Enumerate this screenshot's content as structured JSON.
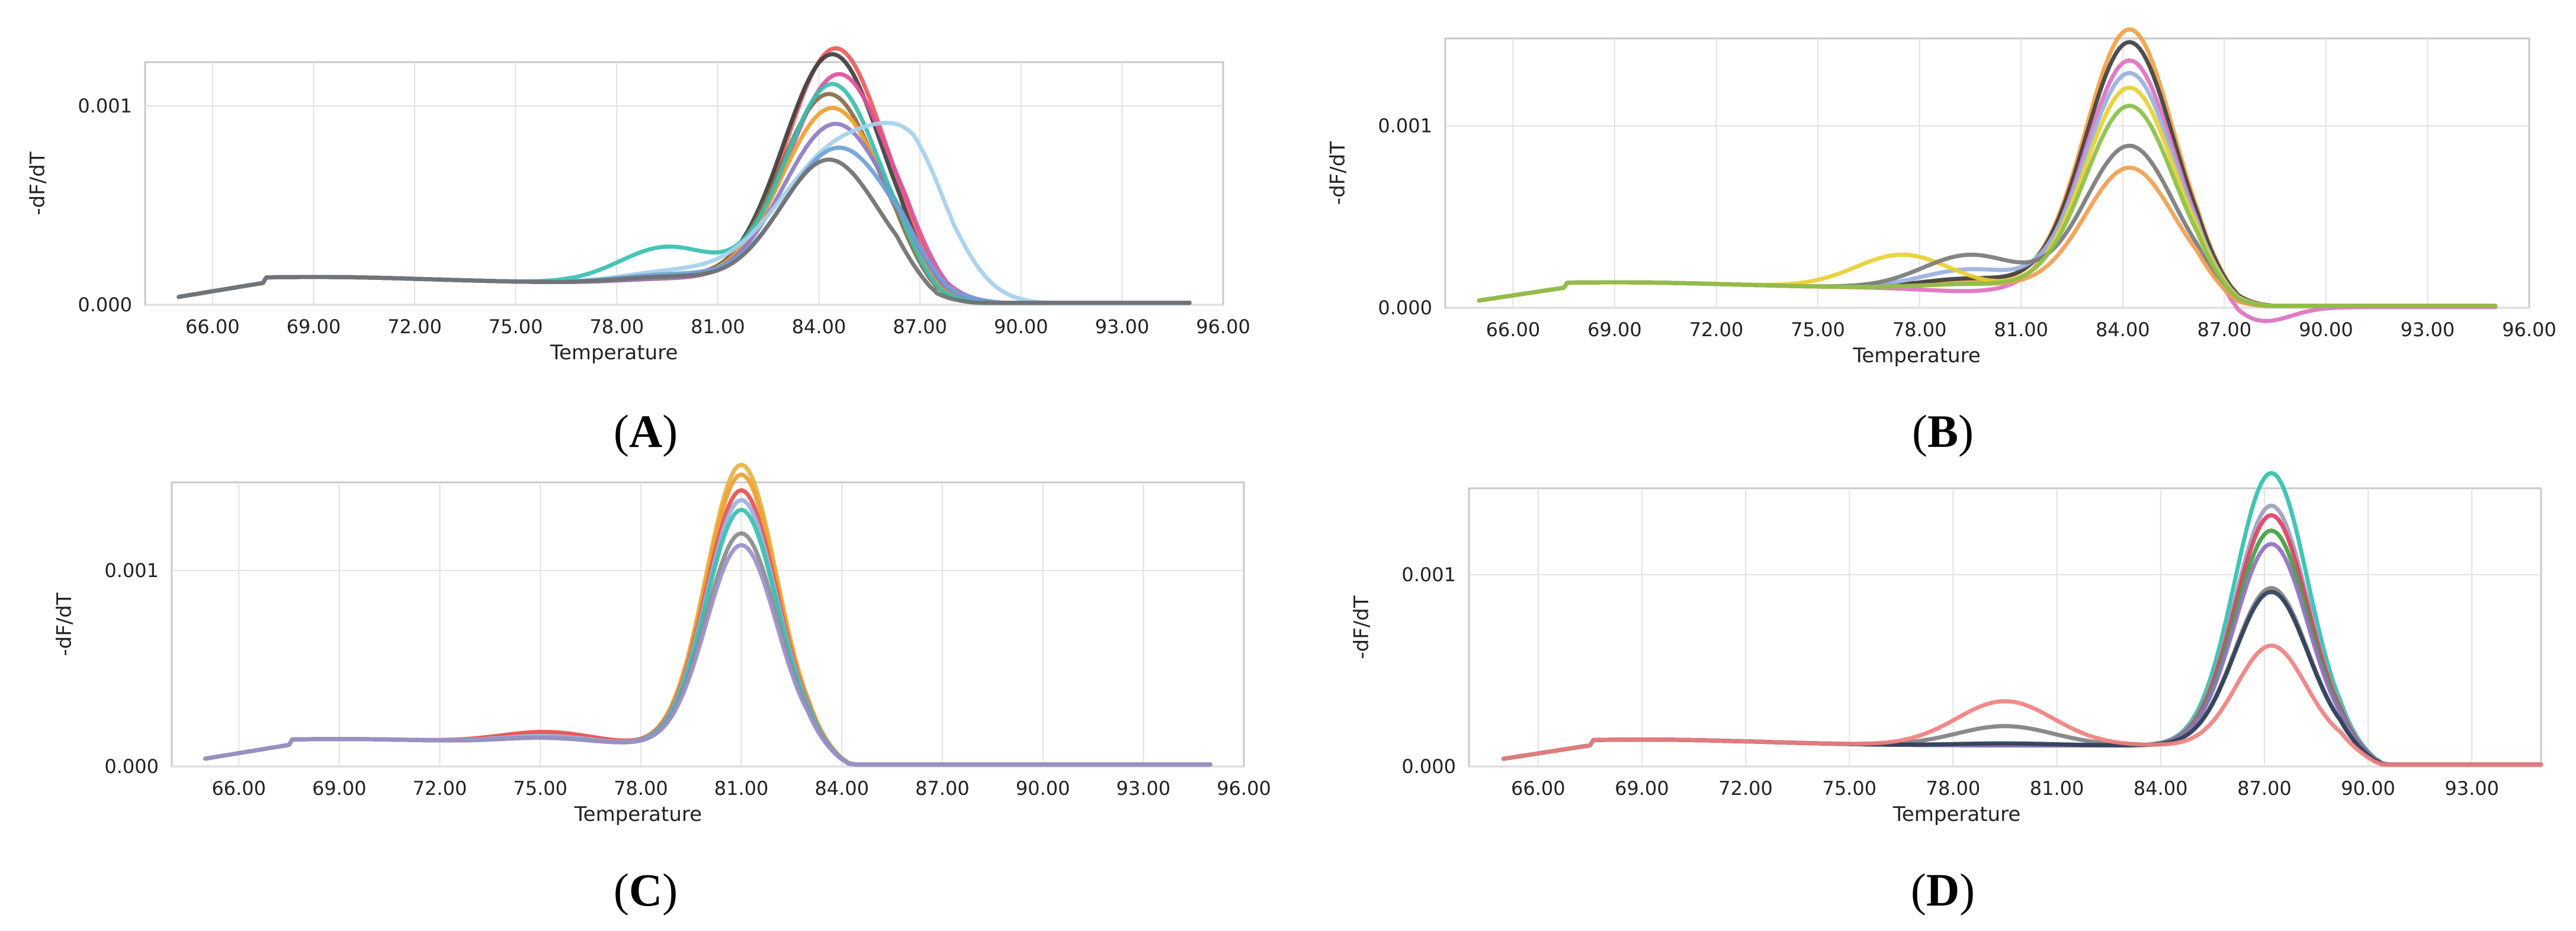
{
  "chart_data": [
    {
      "type": "line",
      "panel_label": "A",
      "xlabel": "Temperature",
      "ylabel": "-dF/dT",
      "xlim": [
        64,
        96
      ],
      "ylim": [
        0,
        0.00122
      ],
      "x_ticks": [
        "66.00",
        "69.00",
        "72.00",
        "75.00",
        "78.00",
        "81.00",
        "84.00",
        "87.00",
        "90.00",
        "93.00",
        "96.00"
      ],
      "y_ticks": [
        "0.000",
        "0.001"
      ],
      "grid": true,
      "series": [
        {
          "color": "#ef5a5a",
          "peak_temp": 84.5,
          "peak_value": 0.00118,
          "width": 1.45,
          "hump_temp": 79.5,
          "hump_value": 0.00012
        },
        {
          "color": "#3f3f3f",
          "peak_temp": 84.4,
          "peak_value": 0.00115,
          "width": 1.45,
          "hump_temp": 79.5,
          "hump_value": 0.00012
        },
        {
          "color": "#e0509a",
          "peak_temp": 84.6,
          "peak_value": 0.00105,
          "width": 1.5,
          "hump_temp": 79.5,
          "hump_value": 0.00012
        },
        {
          "color": "#8a6a4a",
          "peak_temp": 84.3,
          "peak_value": 0.00095,
          "width": 1.45,
          "hump_temp": 79.5,
          "hump_value": 0.00013
        },
        {
          "color": "#f0a030",
          "peak_temp": 84.4,
          "peak_value": 0.00088,
          "width": 1.5,
          "hump_temp": 79.5,
          "hump_value": 0.00012
        },
        {
          "color": "#8e7cc3",
          "peak_temp": 84.5,
          "peak_value": 0.0008,
          "width": 1.55,
          "hump_temp": 79.5,
          "hump_value": 0.00012
        },
        {
          "color": "#36c0b0",
          "peak_temp": 84.4,
          "peak_value": 0.001,
          "width": 1.4,
          "hump_temp": 79.5,
          "hump_value": 0.00028
        },
        {
          "color": "#a6d0ec",
          "peak_temp": 84.8,
          "peak_value": 0.0007,
          "width": 1.9,
          "hump_temp": 79.5,
          "hump_value": 0.00015,
          "shoulder_temp": 87.0,
          "shoulder_value": 0.00035
        },
        {
          "color": "#6fa0d8",
          "peak_temp": 84.6,
          "peak_value": 0.00068,
          "width": 1.6,
          "hump_temp": 79.5,
          "hump_value": 0.00014
        },
        {
          "color": "#707070",
          "peak_temp": 84.3,
          "peak_value": 0.00062,
          "width": 1.45,
          "hump_temp": 79.5,
          "hump_value": 0.00013
        }
      ]
    },
    {
      "type": "line",
      "panel_label": "B",
      "xlabel": "Temperature",
      "ylabel": "-dF/dT",
      "xlim": [
        64,
        96
      ],
      "ylim": [
        0,
        0.00148
      ],
      "x_ticks": [
        "66.00",
        "69.00",
        "72.00",
        "75.00",
        "78.00",
        "81.00",
        "84.00",
        "87.00",
        "90.00",
        "93.00",
        "96.00"
      ],
      "y_ticks": [
        "0.000",
        "0.001"
      ],
      "grid": true,
      "series": [
        {
          "color": "#f5a040",
          "peak_temp": 84.2,
          "peak_value": 0.00142,
          "width": 1.3,
          "hump_temp": 79.5,
          "hump_value": 0.00014
        },
        {
          "color": "#3f3f3f",
          "peak_temp": 84.2,
          "peak_value": 0.00135,
          "width": 1.3,
          "hump_temp": 79.5,
          "hump_value": 0.00015
        },
        {
          "color": "#e070c0",
          "peak_temp": 84.2,
          "peak_value": 0.00125,
          "width": 1.3,
          "hump_temp": 79.5,
          "hump_value": 8e-05,
          "dip_temp": 88.0,
          "dip_value": -9e-05
        },
        {
          "color": "#9ab0e0",
          "peak_temp": 84.2,
          "peak_value": 0.00118,
          "width": 1.3,
          "hump_temp": 79.5,
          "hump_value": 0.0002
        },
        {
          "color": "#e8d030",
          "peak_temp": 84.2,
          "peak_value": 0.0011,
          "width": 1.3,
          "hump_temp": 77.5,
          "hump_value": 0.00028
        },
        {
          "color": "#7a7a7a",
          "peak_temp": 84.2,
          "peak_value": 0.00078,
          "width": 1.3,
          "hump_temp": 79.5,
          "hump_value": 0.00028
        },
        {
          "color": "#f0a050",
          "peak_temp": 84.2,
          "peak_value": 0.00066,
          "width": 1.3,
          "hump_temp": 79.5,
          "hump_value": 0.00012
        },
        {
          "color": "#8ac048",
          "peak_temp": 84.2,
          "peak_value": 0.001,
          "width": 1.3,
          "hump_temp": 79.5,
          "hump_value": 0.00012
        }
      ]
    },
    {
      "type": "line",
      "panel_label": "C",
      "xlabel": "Temperature",
      "ylabel": "-dF/dT",
      "xlim": [
        64,
        96
      ],
      "ylim": [
        0,
        0.00145
      ],
      "x_ticks": [
        "66.00",
        "69.00",
        "72.00",
        "75.00",
        "78.00",
        "81.00",
        "84.00",
        "87.00",
        "90.00",
        "93.00",
        "96.00"
      ],
      "y_ticks": [
        "0.000",
        "0.001"
      ],
      "grid": true,
      "series": [
        {
          "color": "#e8b040",
          "peak_temp": 81.0,
          "peak_value": 0.00143,
          "width": 1.05,
          "hump_temp": 75.2,
          "hump_value": 0.00015
        },
        {
          "color": "#f0a030",
          "peak_temp": 81.0,
          "peak_value": 0.00138,
          "width": 1.05,
          "hump_temp": 75.2,
          "hump_value": 0.00015
        },
        {
          "color": "#e85050",
          "peak_temp": 81.0,
          "peak_value": 0.0013,
          "width": 1.05,
          "hump_temp": 75.2,
          "hump_value": 0.00016
        },
        {
          "color": "#9ab0e0",
          "peak_temp": 81.0,
          "peak_value": 0.00125,
          "width": 1.05,
          "hump_temp": 75.2,
          "hump_value": 0.00014
        },
        {
          "color": "#36c0b0",
          "peak_temp": 81.0,
          "peak_value": 0.0012,
          "width": 1.05,
          "hump_temp": 75.2,
          "hump_value": 0.00013
        },
        {
          "color": "#8a8a8a",
          "peak_temp": 81.0,
          "peak_value": 0.00108,
          "width": 1.05,
          "hump_temp": 75.2,
          "hump_value": 0.00013
        },
        {
          "color": "#9a90c8",
          "peak_temp": 81.0,
          "peak_value": 0.00102,
          "width": 1.05,
          "hump_temp": 75.2,
          "hump_value": 0.00013
        }
      ]
    },
    {
      "type": "line",
      "panel_label": "D",
      "xlabel": "Temperature",
      "ylabel": "-dF/dT",
      "xlim": [
        64,
        95
      ],
      "ylim": [
        0,
        0.00145
      ],
      "x_ticks": [
        "66.00",
        "69.00",
        "72.00",
        "75.00",
        "78.00",
        "81.00",
        "84.00",
        "87.00",
        "90.00",
        "93.00"
      ],
      "y_ticks": [
        "0.000",
        "0.001"
      ],
      "grid": true,
      "series": [
        {
          "color": "#30c0b0",
          "peak_temp": 87.2,
          "peak_value": 0.00142,
          "width": 1.05,
          "hump_temp": 79.5,
          "hump_value": 0.0001
        },
        {
          "color": "#a0a0c0",
          "peak_temp": 87.2,
          "peak_value": 0.00125,
          "width": 1.05,
          "hump_temp": 79.5,
          "hump_value": 0.0001
        },
        {
          "color": "#e04060",
          "peak_temp": 87.2,
          "peak_value": 0.0012,
          "width": 1.05,
          "hump_temp": 79.5,
          "hump_value": 0.0001
        },
        {
          "color": "#40a040",
          "peak_temp": 87.2,
          "peak_value": 0.00112,
          "width": 1.05,
          "hump_temp": 79.5,
          "hump_value": 0.0001
        },
        {
          "color": "#9070c0",
          "peak_temp": 87.2,
          "peak_value": 0.00105,
          "width": 1.05,
          "hump_temp": 79.5,
          "hump_value": 0.0001
        },
        {
          "color": "#808080",
          "peak_temp": 87.2,
          "peak_value": 0.00082,
          "width": 1.05,
          "hump_temp": 79.5,
          "hump_value": 0.0002
        },
        {
          "color": "#2f3f5a",
          "peak_temp": 87.2,
          "peak_value": 0.0008,
          "width": 1.05,
          "hump_temp": 79.5,
          "hump_value": 0.00011
        },
        {
          "color": "#f08080",
          "peak_temp": 87.2,
          "peak_value": 0.00052,
          "width": 1.0,
          "hump_temp": 79.5,
          "hump_value": 0.00033
        }
      ]
    }
  ]
}
